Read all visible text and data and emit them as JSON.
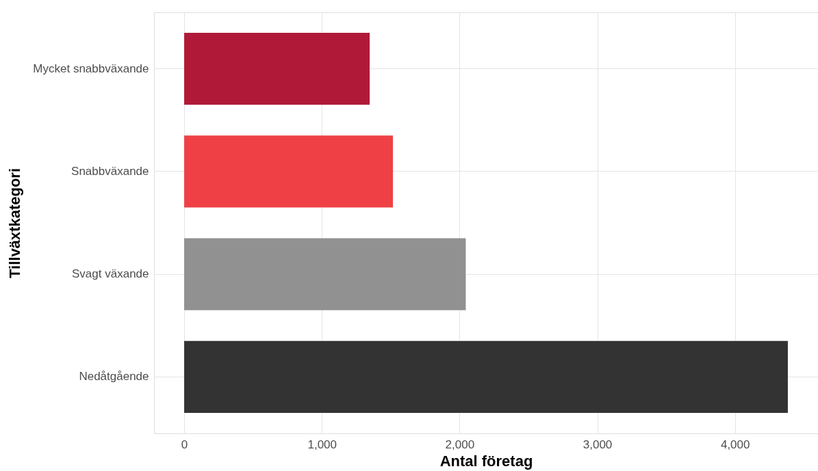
{
  "chart_data": {
    "type": "bar",
    "orientation": "horizontal",
    "xlabel": "Antal företag",
    "ylabel": "Tillväxtkategori",
    "categories": [
      "Mycket snabbväxande",
      "Snabbväxande",
      "Svagt växande",
      "Nedåtgående"
    ],
    "values": [
      1347,
      1516,
      2045,
      4384
    ],
    "colors": [
      "#b01a38",
      "#ef4145",
      "#919191",
      "#333333"
    ],
    "xlim": [
      -219,
      4603
    ],
    "xticks": [
      0,
      {
        "value": 1000,
        "label": "1,000"
      },
      {
        "value": 2000,
        "label": "2,000"
      },
      {
        "value": 3000,
        "label": "3,000"
      },
      {
        "value": 4000,
        "label": "4,000"
      }
    ],
    "grid": true,
    "legend": false
  }
}
